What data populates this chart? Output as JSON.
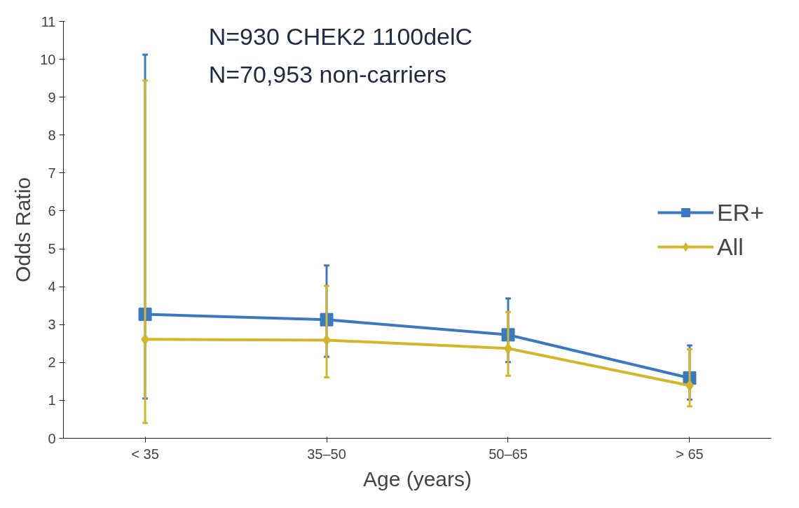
{
  "chart_data": {
    "type": "line",
    "xlabel": "Age (years)",
    "ylabel": "Odds Ratio",
    "annotations": [
      "N=930 CHEK2 1100delC",
      "N=70,953 non-carriers"
    ],
    "categories": [
      "< 35",
      "35–50",
      "50–65",
      "> 65"
    ],
    "ylim": [
      0,
      11
    ],
    "yticks": [
      0,
      1,
      2,
      3,
      4,
      5,
      6,
      7,
      8,
      9,
      10,
      11
    ],
    "grid": false,
    "legend": "right",
    "series": [
      {
        "name": "ER+",
        "color": "#3a78c0",
        "marker": "square",
        "values": [
          3.27,
          3.13,
          2.73,
          1.59
        ],
        "errors": [
          [
            1.05,
            10.12
          ],
          [
            2.15,
            4.56
          ],
          [
            2.01,
            3.69
          ],
          [
            1.02,
            2.45
          ]
        ]
      },
      {
        "name": "All",
        "color": "#d4b62a",
        "marker": "diamond",
        "values": [
          2.61,
          2.59,
          2.37,
          1.39
        ],
        "errors": [
          [
            0.4,
            9.44
          ],
          [
            1.61,
            4.02
          ],
          [
            1.65,
            3.33
          ],
          [
            0.84,
            2.35
          ]
        ]
      }
    ]
  }
}
